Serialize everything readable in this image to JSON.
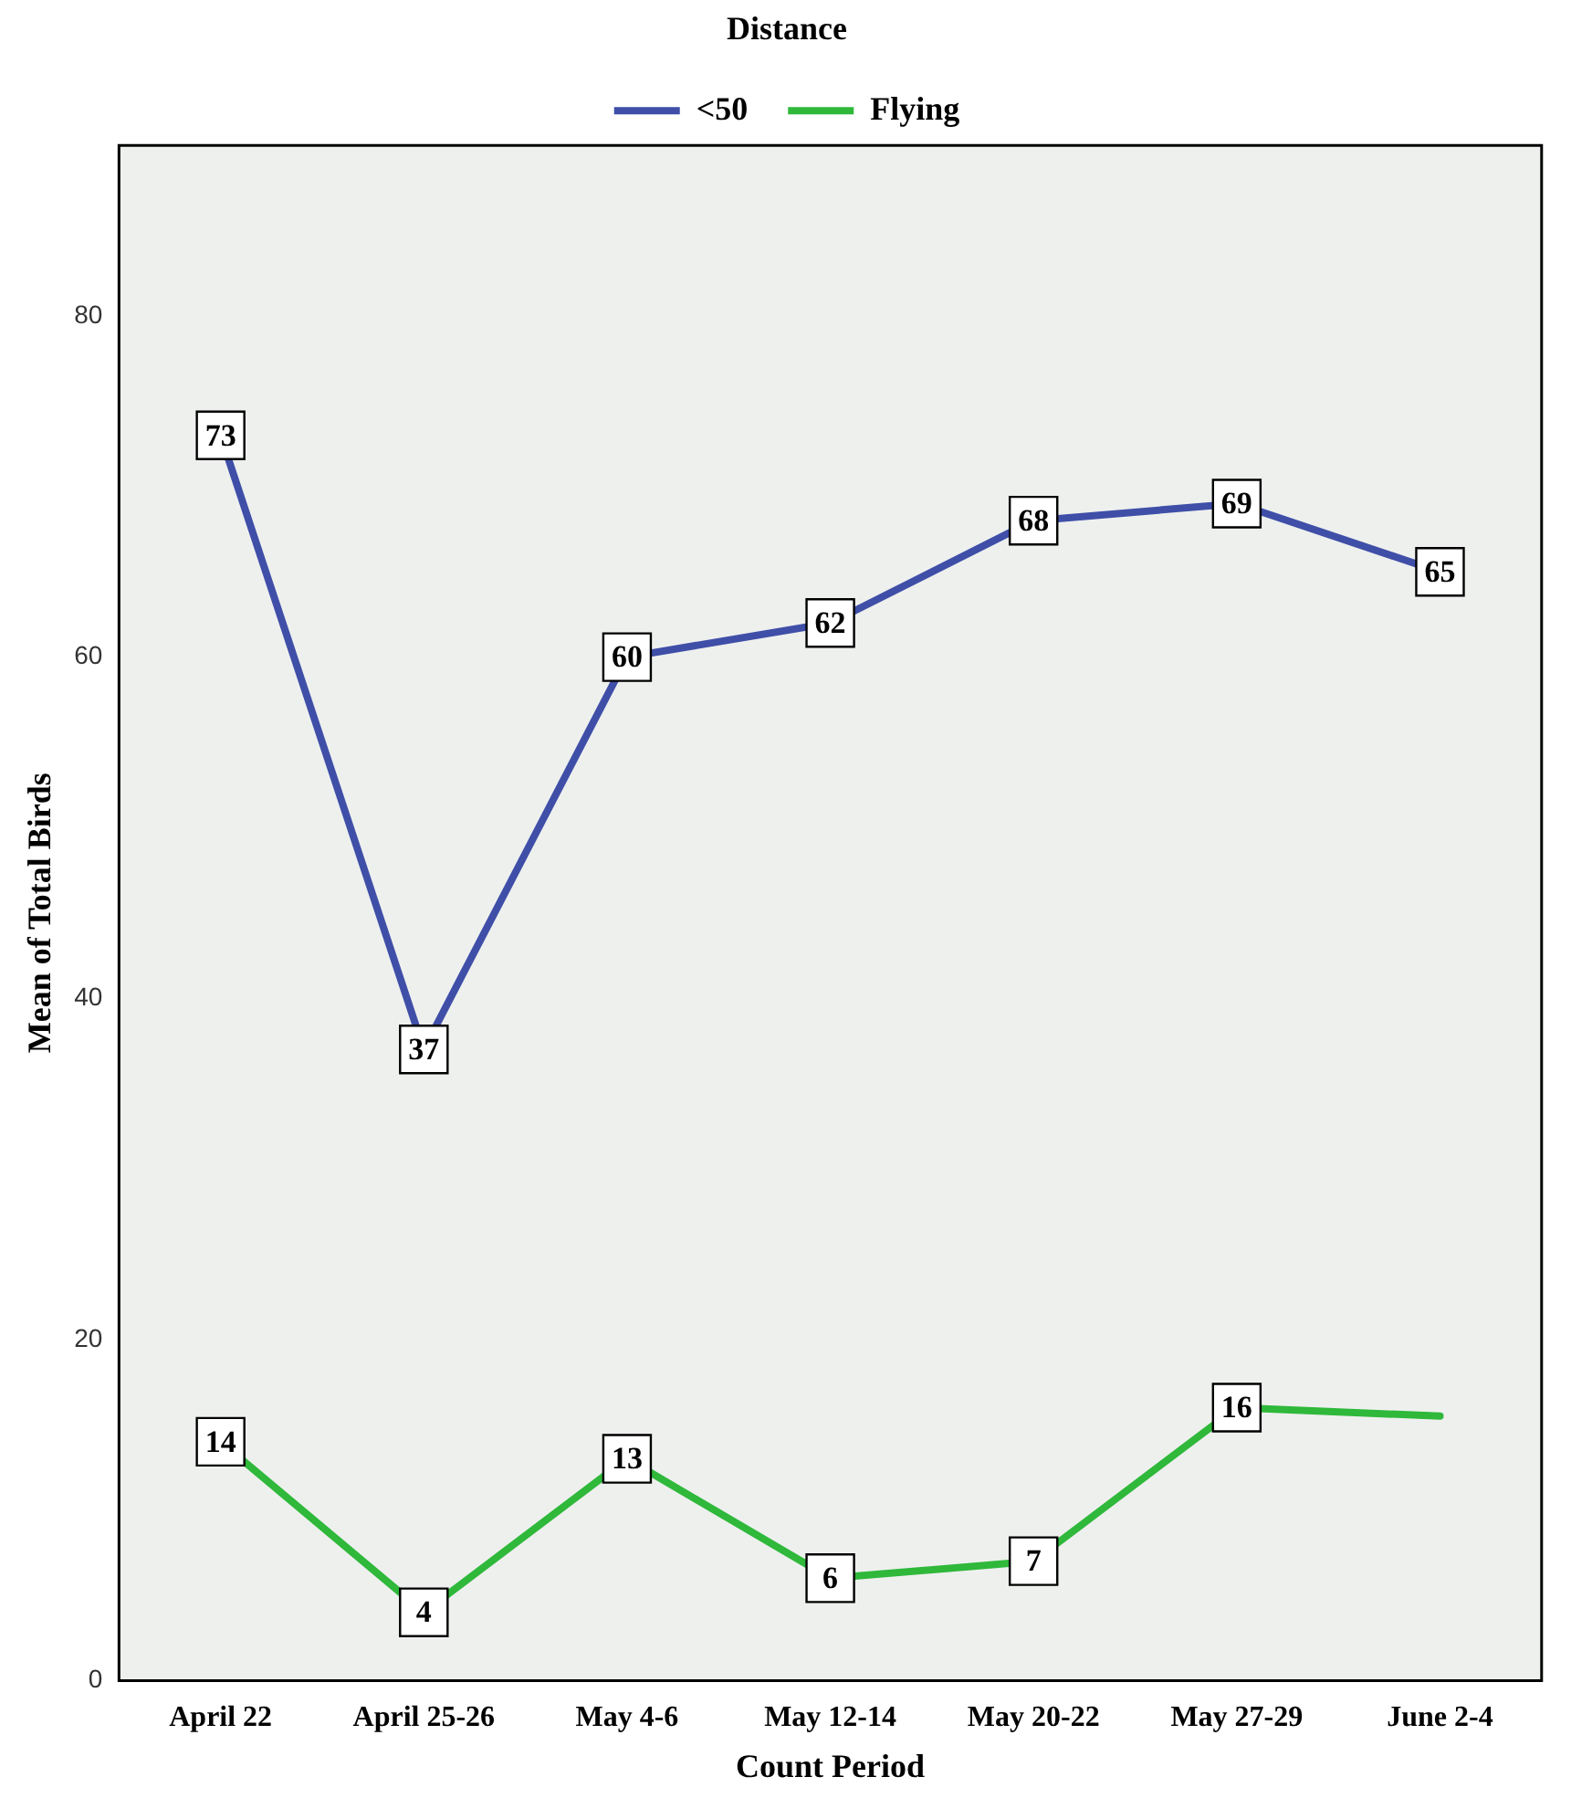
{
  "chart_data": {
    "type": "line",
    "xlabel": "Count Period",
    "ylabel": "Mean of Total Birds",
    "legend_title": "Distance",
    "legend": "top",
    "categories": [
      "April 22",
      "April 25-26",
      "May 4-6",
      "May 12-14",
      "May 20-22",
      "May 27-29",
      "June 2-4"
    ],
    "series": [
      {
        "name": "<50",
        "color": "#3f4fa8",
        "values": [
          73,
          37,
          60,
          62,
          68,
          69,
          65
        ],
        "value_labels": [
          "73",
          "37",
          "60",
          "62",
          "68",
          "69",
          "65"
        ]
      },
      {
        "name": "Flying",
        "color": "#2fb83a",
        "values": [
          14,
          4,
          13,
          6,
          7,
          16,
          15.5
        ],
        "value_labels": [
          "14",
          "4",
          "13",
          "6",
          "7",
          "16",
          null
        ]
      }
    ],
    "ylim": [
      0,
      90
    ],
    "yticks": [
      0,
      20,
      40,
      60,
      80
    ],
    "grid": false,
    "marker": "square",
    "line_style": "solid"
  }
}
